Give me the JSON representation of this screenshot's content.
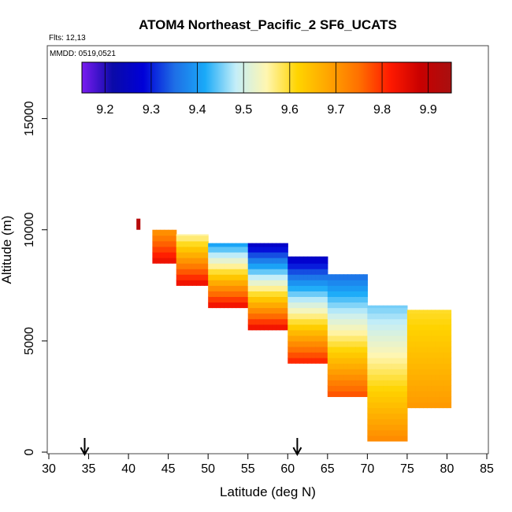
{
  "chart_data": {
    "type": "heatmap",
    "title": "ATOM4 Northeast_Pacific_2 SF6_UCATS",
    "flights_label": "Flts: 12,13",
    "dates_label": "MMDD: 0519,0521",
    "xlabel": "Latitude (deg N)",
    "ylabel": "Altitude (m)",
    "xlim": [
      30,
      85
    ],
    "ylim": [
      0,
      17500
    ],
    "xticks": [
      30,
      35,
      40,
      45,
      50,
      55,
      60,
      65,
      70,
      75,
      80,
      85
    ],
    "yticks": [
      0,
      5000,
      10000,
      15000
    ],
    "grid": false,
    "colorbar": {
      "position": "top",
      "range": [
        9.15,
        9.95
      ],
      "ticks": [
        9.2,
        9.3,
        9.4,
        9.5,
        9.6,
        9.7,
        9.8,
        9.9
      ],
      "colors": [
        "#7a1cf0",
        "#0a0aa8",
        "#0000d8",
        "#1e6ee6",
        "#1aaaf8",
        "#c4eef8",
        "#fff6b0",
        "#ffd400",
        "#ffa500",
        "#ff7000",
        "#ff1a00",
        "#c80000",
        "#a81010"
      ]
    },
    "data": {
      "lat_edges": [
        41.0,
        43.0,
        46.0,
        50.0,
        55.0,
        60.0,
        65.0,
        70.0,
        75.0,
        80.5
      ],
      "columns": [
        {
          "lat": [
            41.0,
            41.5
          ],
          "alt": [
            10000,
            10500
          ],
          "value": 9.92
        },
        {
          "lat": [
            43.0,
            46.0
          ],
          "altitudes": [
            8500,
            10000
          ],
          "top_value": 9.7,
          "bottom_value": 9.85
        },
        {
          "lat": [
            46.0,
            50.0
          ],
          "altitudes": [
            7500,
            9800
          ],
          "top_value": 9.55,
          "bottom_value": 9.85
        },
        {
          "lat": [
            50.0,
            55.0
          ],
          "altitudes": [
            6500,
            9400
          ],
          "top_value": 9.4,
          "bottom_value": 9.85
        },
        {
          "lat": [
            55.0,
            60.0
          ],
          "altitudes": [
            5500,
            9400
          ],
          "top_value": 9.25,
          "bottom_value": 9.85
        },
        {
          "lat": [
            60.0,
            65.0
          ],
          "altitudes": [
            4000,
            8800
          ],
          "top_value": 9.25,
          "bottom_value": 9.82
        },
        {
          "lat": [
            65.0,
            70.0
          ],
          "altitudes": [
            2500,
            8000
          ],
          "top_value": 9.35,
          "bottom_value": 9.78
        },
        {
          "lat": [
            70.0,
            75.0
          ],
          "altitudes": [
            500,
            6600
          ],
          "top_value": 9.45,
          "bottom_value": 9.72
        },
        {
          "lat": [
            75.0,
            80.5
          ],
          "altitudes": [
            2000,
            6400
          ],
          "top_value": 9.6,
          "bottom_value": 9.7
        }
      ],
      "flight_markers_lat": [
        34.5,
        61.2
      ]
    }
  }
}
